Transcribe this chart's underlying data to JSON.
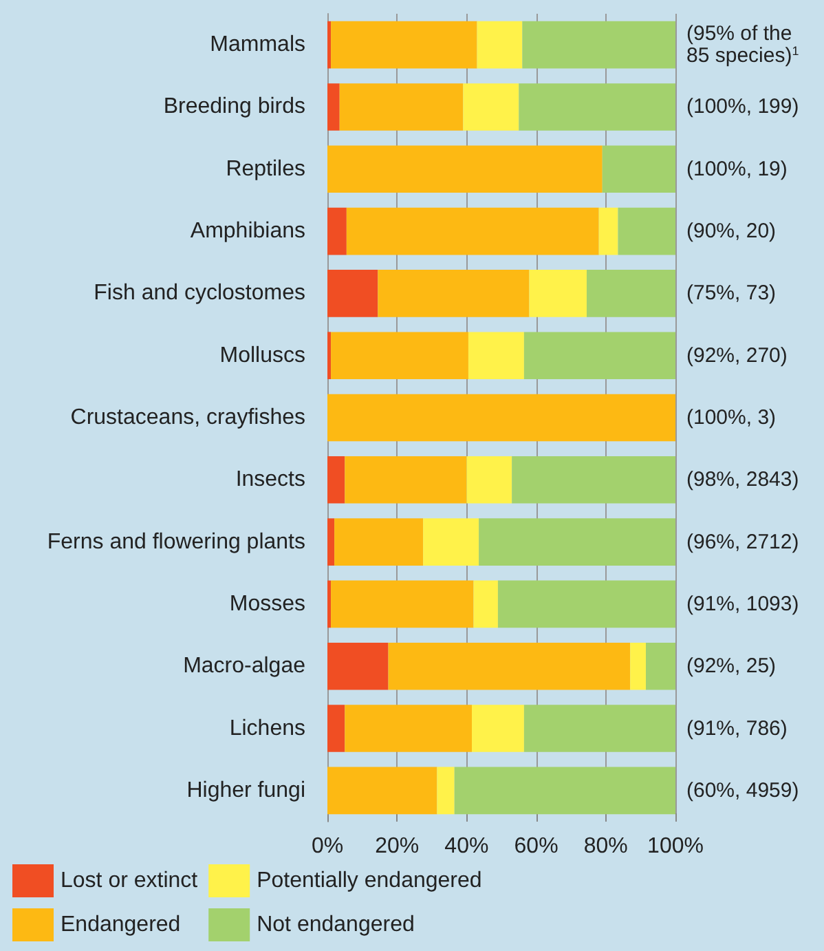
{
  "chart_data": {
    "type": "bar",
    "orientation": "horizontal",
    "stacked": true,
    "categories": [
      "Mammals",
      "Breeding birds",
      "Reptiles",
      "Amphibians",
      "Fish and cyclostomes",
      "Molluscs",
      "Crustaceans, crayfishes",
      "Insects",
      "Ferns and flowering plants",
      "Mosses",
      "Macro-algae",
      "Lichens",
      "Higher fungi"
    ],
    "series": [
      {
        "name": "Lost or extinct",
        "color": "#f04e23",
        "values": [
          1,
          3.5,
          0,
          5.5,
          14.5,
          1,
          0,
          5,
          2,
          1,
          17.5,
          5,
          0
        ]
      },
      {
        "name": "Endangered",
        "color": "#fdb913",
        "values": [
          42,
          35.5,
          79,
          72.5,
          43.5,
          39.5,
          100,
          35,
          25.5,
          41,
          69.5,
          36.5,
          31.5
        ]
      },
      {
        "name": "Potentially endangered",
        "color": "#fff24a",
        "values": [
          13,
          16,
          0,
          5.5,
          16.5,
          16,
          0,
          13,
          16,
          7,
          4.5,
          15,
          5
        ]
      },
      {
        "name": "Not endangered",
        "color": "#a3d16d",
        "values": [
          44,
          45,
          21,
          16.5,
          25.5,
          43.5,
          0,
          47,
          56.5,
          51,
          8.5,
          43.5,
          63.5
        ]
      }
    ],
    "xlim": [
      0,
      100
    ],
    "xticks": [
      {
        "value": 0,
        "label": "0%"
      },
      {
        "value": 20,
        "label": "20%"
      },
      {
        "value": 40,
        "label": "40%"
      },
      {
        "value": 60,
        "label": "60%"
      },
      {
        "value": 80,
        "label": "80%"
      },
      {
        "value": 100,
        "label": "100%"
      }
    ],
    "grid": "x",
    "legend": "bottom left",
    "annotations": [
      "(95% of the 85 species)$^{1}$",
      "(100%, 199)",
      "(100%, 19)",
      "(90%, 20)",
      "(75%, 73)",
      "(92%, 270)",
      "(100%, 3)",
      "(98%, 2843)",
      "(96%, 2712)",
      "(91%, 1093)",
      "(92%, 25)",
      "(91%, 786)",
      "(60%, 4959)"
    ]
  }
}
